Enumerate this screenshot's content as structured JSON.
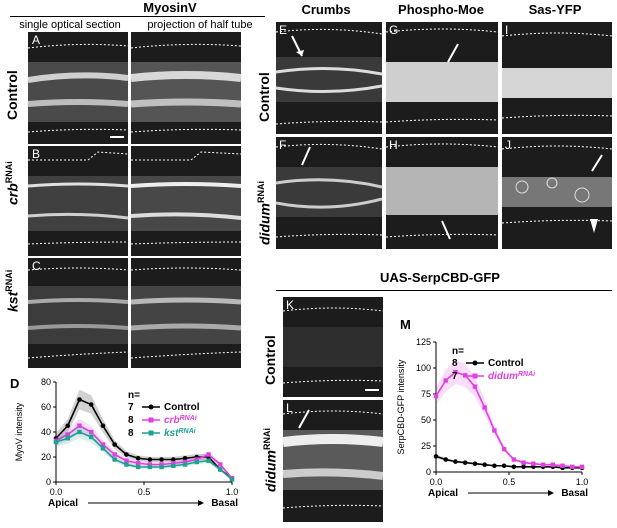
{
  "figure": {
    "myosin_title": "MyosinV",
    "col_single": "single optical section",
    "col_projection": "projection of half tube",
    "crumbs": "Crumbs",
    "phospho": "Phospho-Moe",
    "sas": "Sas-YFP",
    "uas": "UAS-SerpCBD-GFP",
    "row_control": "Control",
    "row_crb": "crb",
    "row_kst": "kst",
    "row_didum": "didum",
    "rnai_sup": "RNAi",
    "labels": {
      "A": "A",
      "B": "B",
      "C": "C",
      "D": "D",
      "E": "E",
      "F": "F",
      "G": "G",
      "H": "H",
      "I": "I",
      "J": "J",
      "K": "K",
      "L": "L",
      "M": "M"
    }
  },
  "chart_data": [
    {
      "type": "line",
      "panel": "D",
      "ylabel": "MyoV intensity",
      "xlabel_left": "Apical",
      "xlabel_right": "Basal",
      "xlim": [
        0,
        1
      ],
      "ylim": [
        0,
        80
      ],
      "yticks": [
        "0",
        "20",
        "40",
        "60",
        "80"
      ],
      "xticks": [
        "0.0",
        "0.5",
        "1.0"
      ],
      "n_header": "n=",
      "x": [
        0.0,
        0.0667,
        0.1333,
        0.2,
        0.2667,
        0.3333,
        0.4,
        0.4667,
        0.5333,
        0.6,
        0.6667,
        0.7333,
        0.8,
        0.8667,
        0.9333,
        1.0
      ],
      "series": [
        {
          "name": "Control",
          "n": "7",
          "color": "#000000",
          "values": [
            35,
            45,
            66,
            62,
            45,
            30,
            22,
            19,
            18,
            18,
            18,
            19,
            20,
            20,
            10,
            3
          ]
        },
        {
          "name": "crb",
          "sup": "RNAi",
          "n": "8",
          "color": "#e040e0",
          "values": [
            33,
            38,
            45,
            40,
            30,
            22,
            17,
            15,
            14,
            14,
            15,
            16,
            18,
            22,
            14,
            3
          ]
        },
        {
          "name": "kst",
          "sup": "RNAi",
          "n": "8",
          "color": "#20a090",
          "values": [
            32,
            35,
            40,
            36,
            27,
            18,
            14,
            12,
            12,
            12,
            13,
            14,
            16,
            17,
            10,
            2
          ]
        }
      ]
    },
    {
      "type": "line",
      "panel": "M",
      "ylabel": "SerpCBD-GFP intensity",
      "xlabel_left": "Apical",
      "xlabel_right": "Basal",
      "xlim": [
        0,
        1
      ],
      "ylim": [
        0,
        125
      ],
      "yticks": [
        "0",
        "25",
        "50",
        "75",
        "100",
        "125"
      ],
      "xticks": [
        "0.0",
        "0.5",
        "1.0"
      ],
      "n_header": "n=",
      "x": [
        0.0,
        0.0667,
        0.1333,
        0.2,
        0.2667,
        0.3333,
        0.4,
        0.4667,
        0.5333,
        0.6,
        0.6667,
        0.7333,
        0.8,
        0.8667,
        0.9333,
        1.0
      ],
      "series": [
        {
          "name": "Control",
          "n": "8",
          "color": "#000000",
          "values": [
            15,
            12,
            10,
            9,
            8,
            7,
            6,
            6,
            5,
            5,
            5,
            5,
            5,
            4,
            4,
            4
          ]
        },
        {
          "name": "didum",
          "sup": "RNAi",
          "n": "7",
          "color": "#e040e0",
          "values": [
            73,
            88,
            96,
            93,
            82,
            62,
            40,
            22,
            12,
            9,
            8,
            7,
            7,
            6,
            5,
            5
          ]
        }
      ]
    }
  ]
}
